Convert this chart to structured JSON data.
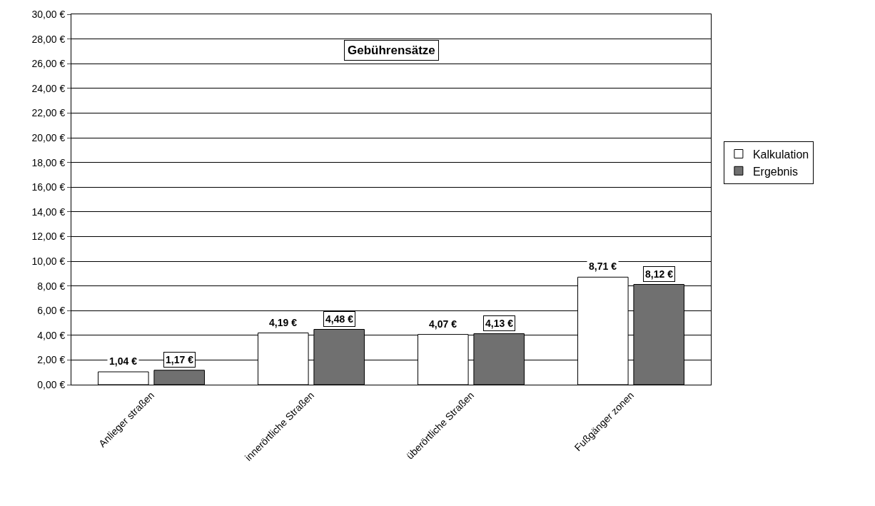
{
  "chart_data": {
    "type": "bar",
    "title": "Gebührensätze",
    "categories": [
      "Anlieger straßen",
      "innerörtliche Straßen",
      "überörtliche Straßen",
      "Fußgänger zonen"
    ],
    "series": [
      {
        "name": "Kalkulation",
        "color": "#ffffff",
        "values": [
          1.04,
          4.19,
          4.07,
          8.71
        ],
        "value_labels": [
          "1,04 €",
          "4,19 €",
          "4,07 €",
          "8,71 €"
        ]
      },
      {
        "name": "Ergebnis",
        "color": "#707070",
        "values": [
          1.17,
          4.48,
          4.13,
          8.12
        ],
        "value_labels": [
          "1,17 €",
          "4,48 €",
          "4,13 €",
          "8,12 €"
        ]
      }
    ],
    "ylim": [
      0,
      30
    ],
    "yticks": [
      {
        "value": 0,
        "label": "0,00 €"
      },
      {
        "value": 2,
        "label": "2,00 €"
      },
      {
        "value": 4,
        "label": "4,00 €"
      },
      {
        "value": 6,
        "label": "6,00 €"
      },
      {
        "value": 8,
        "label": "8,00 €"
      },
      {
        "value": 10,
        "label": "10,00 €"
      },
      {
        "value": 12,
        "label": "12,00 €"
      },
      {
        "value": 14,
        "label": "14,00 €"
      },
      {
        "value": 16,
        "label": "16,00 €"
      },
      {
        "value": 18,
        "label": "18,00 €"
      },
      {
        "value": 20,
        "label": "20,00 €"
      },
      {
        "value": 22,
        "label": "22,00 €"
      },
      {
        "value": 24,
        "label": "24,00 €"
      },
      {
        "value": 26,
        "label": "26,00 €"
      },
      {
        "value": 28,
        "label": "28,00 €"
      },
      {
        "value": 30,
        "label": "30,00 €"
      }
    ],
    "grid": "y",
    "legend": "right"
  }
}
